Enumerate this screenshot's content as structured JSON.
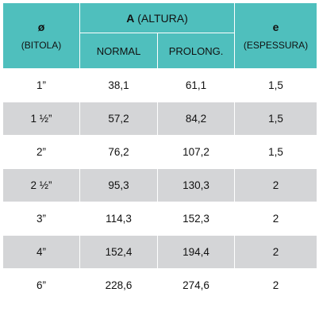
{
  "header": {
    "col1_symbol": "ø",
    "col1_sub": "(BITOLA)",
    "group_symbol": "A",
    "group_sub": "(ALTURA)",
    "sub_col_normal": "NORMAL",
    "sub_col_prolong": "PROLONG.",
    "col4_symbol": "e",
    "col4_sub": "(ESPESSURA)"
  },
  "rows": [
    {
      "bitola": "1”",
      "normal": "38,1",
      "prolong": "61,1",
      "espessura": "1,5"
    },
    {
      "bitola": "1 ½”",
      "normal": "57,2",
      "prolong": "84,2",
      "espessura": "1,5"
    },
    {
      "bitola": "2”",
      "normal": "76,2",
      "prolong": "107,2",
      "espessura": "1,5"
    },
    {
      "bitola": "2 ½”",
      "normal": "95,3",
      "prolong": "130,3",
      "espessura": "2"
    },
    {
      "bitola": "3”",
      "normal": "114,3",
      "prolong": "152,3",
      "espessura": "2"
    },
    {
      "bitola": "4”",
      "normal": "152,4",
      "prolong": "194,4",
      "espessura": "2"
    },
    {
      "bitola": "6”",
      "normal": "228,6",
      "prolong": "274,6",
      "espessura": "2"
    }
  ],
  "colors": {
    "header_bg": "#4fbfbd",
    "row_alt_bg": "#d4d5d7",
    "row_bg": "#ffffff"
  }
}
